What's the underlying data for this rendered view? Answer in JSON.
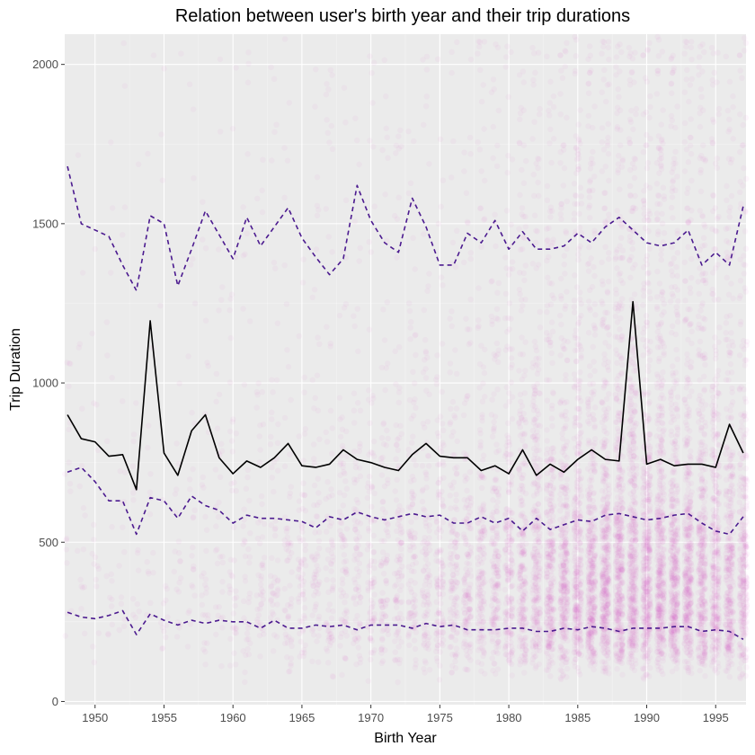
{
  "chart_data": {
    "type": "scatter",
    "title": "Relation between user's birth year and their trip durations",
    "xlabel": "Birth Year",
    "ylabel": "Trip Duration",
    "xlim": [
      1947.8,
      1997.2
    ],
    "ylim": [
      -10,
      2095
    ],
    "x_ticks": [
      1950,
      1955,
      1960,
      1965,
      1970,
      1975,
      1980,
      1985,
      1990,
      1995
    ],
    "y_ticks": [
      0,
      500,
      1000,
      1500,
      2000
    ],
    "grid": true,
    "legend": "none",
    "colors": {
      "panel": "#ebebeb",
      "grid_major": "#ffffff",
      "points": "#e066c9",
      "mean_line": "#000000",
      "quantile_lines": "#4b1a8f"
    },
    "scatter_description": "individual trips per birth year, semi-transparent points",
    "years": [
      1948,
      1949,
      1950,
      1951,
      1952,
      1953,
      1954,
      1955,
      1956,
      1957,
      1958,
      1959,
      1960,
      1961,
      1962,
      1963,
      1964,
      1965,
      1966,
      1967,
      1968,
      1969,
      1970,
      1971,
      1972,
      1973,
      1974,
      1975,
      1976,
      1977,
      1978,
      1979,
      1980,
      1981,
      1982,
      1983,
      1984,
      1985,
      1986,
      1987,
      1988,
      1989,
      1990,
      1991,
      1992,
      1993,
      1994,
      1995,
      1996,
      1997
    ],
    "series": [
      {
        "style": "solid",
        "values": [
          900,
          825,
          815,
          770,
          775,
          665,
          1195,
          780,
          710,
          850,
          900,
          765,
          715,
          755,
          735,
          765,
          810,
          740,
          735,
          745,
          790,
          760,
          750,
          735,
          725,
          775,
          810,
          770,
          765,
          765,
          725,
          740,
          715,
          790,
          710,
          745,
          720,
          760,
          790,
          760,
          755,
          1255,
          745,
          760,
          740,
          745,
          745,
          735,
          870,
          780
        ]
      },
      {
        "style": "dashed",
        "values": [
          1680,
          1500,
          1480,
          1460,
          1370,
          1290,
          1525,
          1500,
          1305,
          1420,
          1540,
          1465,
          1390,
          1520,
          1430,
          1490,
          1550,
          1455,
          1395,
          1340,
          1390,
          1620,
          1510,
          1440,
          1410,
          1580,
          1490,
          1370,
          1370,
          1470,
          1440,
          1510,
          1420,
          1475,
          1420,
          1420,
          1430,
          1470,
          1440,
          1490,
          1520,
          1480,
          1440,
          1430,
          1440,
          1480,
          1370,
          1410,
          1370,
          1555
        ]
      },
      {
        "style": "dashed",
        "values": [
          720,
          735,
          690,
          630,
          630,
          525,
          640,
          630,
          575,
          645,
          615,
          600,
          560,
          585,
          575,
          575,
          570,
          565,
          545,
          580,
          570,
          595,
          580,
          570,
          580,
          590,
          580,
          585,
          560,
          560,
          580,
          560,
          575,
          535,
          575,
          540,
          555,
          570,
          565,
          585,
          590,
          580,
          570,
          575,
          585,
          590,
          560,
          535,
          525,
          580
        ]
      },
      {
        "style": "dashed",
        "values": [
          280,
          265,
          260,
          270,
          285,
          210,
          275,
          255,
          240,
          255,
          245,
          255,
          250,
          250,
          230,
          255,
          230,
          230,
          240,
          235,
          240,
          225,
          240,
          240,
          240,
          230,
          245,
          235,
          240,
          225,
          225,
          225,
          230,
          230,
          220,
          220,
          230,
          225,
          235,
          230,
          220,
          230,
          230,
          230,
          235,
          235,
          220,
          225,
          220,
          195
        ]
      }
    ]
  }
}
